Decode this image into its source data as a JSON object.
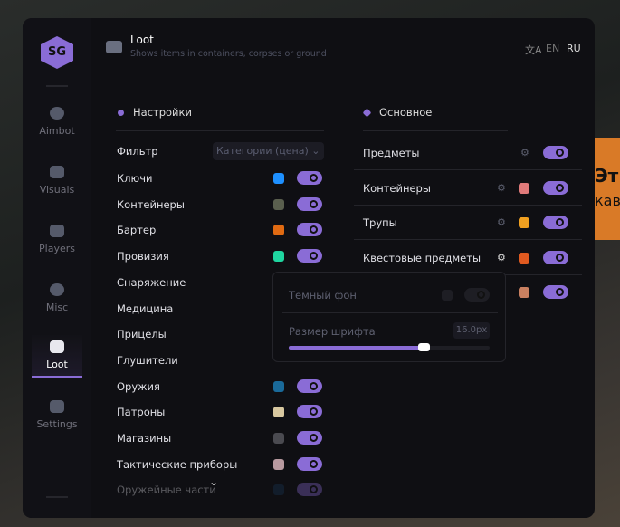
{
  "background": {
    "line1": "Эт",
    "line2": "кав"
  },
  "sidebar": {
    "logo": "SG",
    "items": [
      {
        "label": "Aimbot",
        "icon": "alien-icon"
      },
      {
        "label": "Visuals",
        "icon": "vr-headset-icon"
      },
      {
        "label": "Players",
        "icon": "users-icon"
      },
      {
        "label": "Misc",
        "icon": "dots-icon"
      },
      {
        "label": "Loot",
        "icon": "toolbox-icon",
        "active": true
      },
      {
        "label": "Settings",
        "icon": "list-icon"
      }
    ]
  },
  "header": {
    "title": "Loot",
    "subtitle": "Shows items in containers, corpses or ground",
    "lang_en": "EN",
    "lang_ru": "RU"
  },
  "settings": {
    "title": "Настройки",
    "filter_label": "Фильтр",
    "filter_value": "Категории (цена)",
    "items": [
      {
        "label": "Ключи",
        "color": "#1e90ff",
        "on": true
      },
      {
        "label": "Контейнеры",
        "color": "#5a5f4e",
        "on": true
      },
      {
        "label": "Бартер",
        "color": "#e06a12",
        "on": true
      },
      {
        "label": "Провизия",
        "color": "#1fd6a0",
        "on": true
      },
      {
        "label": "Снаряжение"
      },
      {
        "label": "Медицина"
      },
      {
        "label": "Прицелы"
      },
      {
        "label": "Глушители"
      },
      {
        "label": "Оружия",
        "color": "#1a6a9a",
        "on": true
      },
      {
        "label": "Патроны",
        "color": "#d8c8a0",
        "on": true
      },
      {
        "label": "Магазины",
        "color": "#4a4a50",
        "on": true
      },
      {
        "label": "Тактические приборы",
        "color": "#b89aa0",
        "on": true
      },
      {
        "label": "Оружейные части",
        "color": "#1a3a5a",
        "on": true
      }
    ]
  },
  "main": {
    "title": "Основное",
    "items": [
      {
        "label": "Предметы",
        "on": true
      },
      {
        "label": "Контейнеры",
        "color": "#e07a7a",
        "on": true
      },
      {
        "label": "Трупы",
        "color": "#f0a020",
        "on": true
      },
      {
        "label": "Квестовые предметы",
        "color": "#e05a20",
        "on": true
      },
      {
        "label": "",
        "color": "#c98060",
        "on": true
      }
    ]
  },
  "popup": {
    "dark_bg_label": "Темный фон",
    "dark_bg_on": false,
    "font_size_label": "Размер шрифта",
    "font_size_value": "16.0px",
    "font_size_fraction": 0.67
  },
  "accent": "#8a6cd6"
}
